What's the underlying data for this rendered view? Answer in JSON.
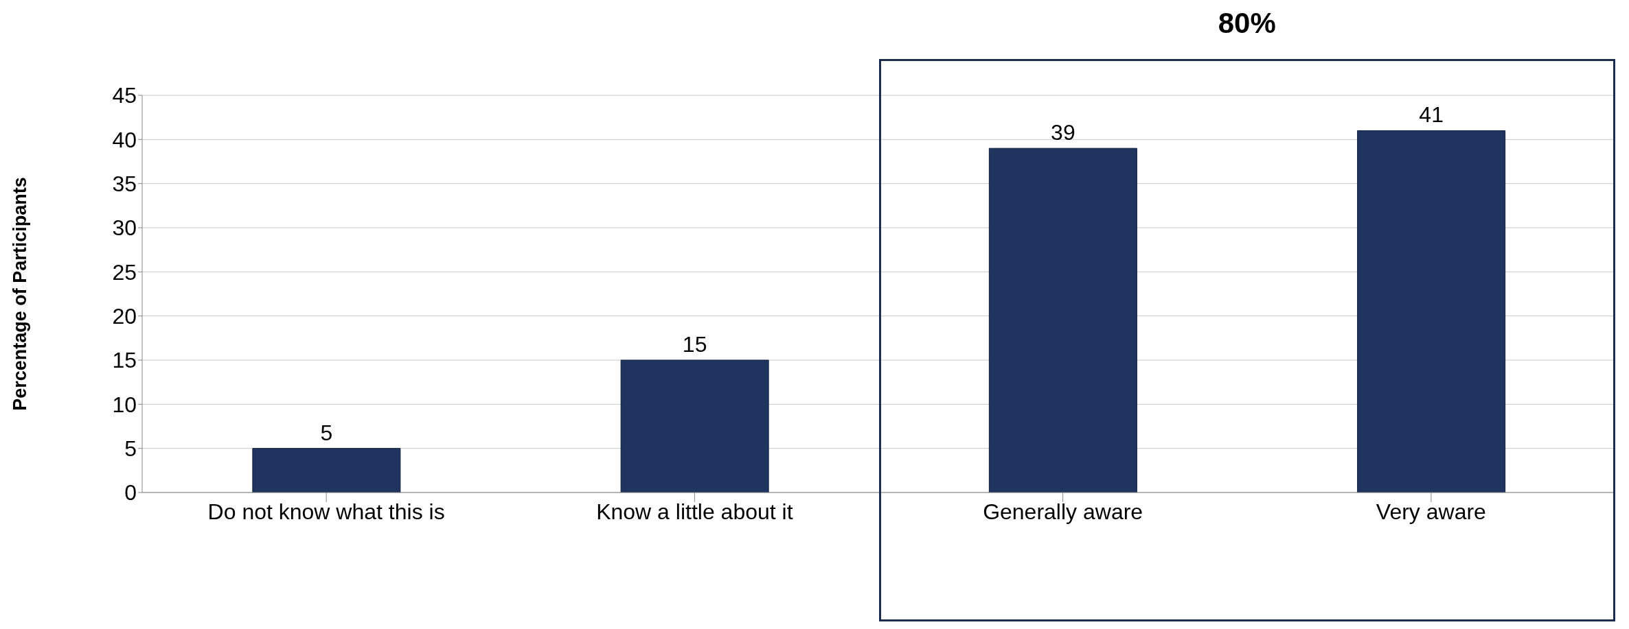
{
  "chart_data": {
    "type": "bar",
    "ylabel": "Percentage of Participants",
    "categories": [
      "Do not know what this is",
      "Know a little about it",
      "Generally aware",
      "Very aware"
    ],
    "values": [
      5,
      15,
      39,
      41
    ],
    "color": "#1f3560",
    "ylim": [
      0,
      45
    ],
    "yticks": [
      0,
      5,
      10,
      15,
      20,
      25,
      30,
      35,
      40,
      45
    ],
    "grid": "y",
    "data_labels": true,
    "annotations": [
      "80%"
    ]
  }
}
